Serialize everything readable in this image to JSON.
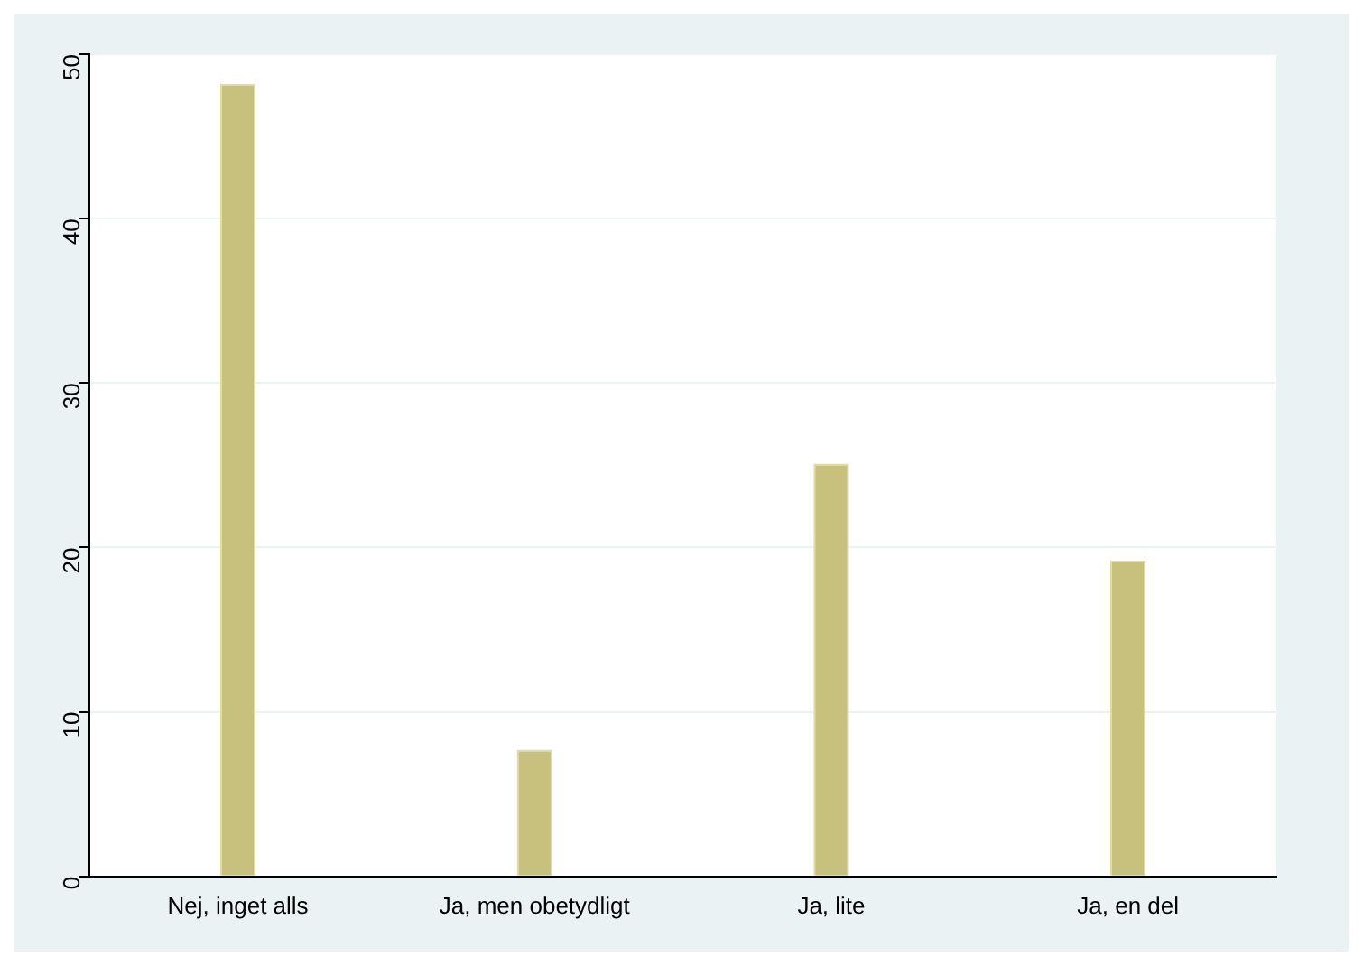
{
  "chart_data": {
    "type": "bar",
    "categories": [
      "Nej, inget alls",
      "Ja, men obetydligt",
      "Ja, lite",
      "Ja, en del"
    ],
    "values": [
      48.2,
      7.7,
      25.1,
      19.2
    ],
    "color": "#c8c17e",
    "ylim": [
      0,
      50
    ],
    "yticks": [
      0,
      10,
      20,
      30,
      40,
      50
    ],
    "grid": "y"
  }
}
